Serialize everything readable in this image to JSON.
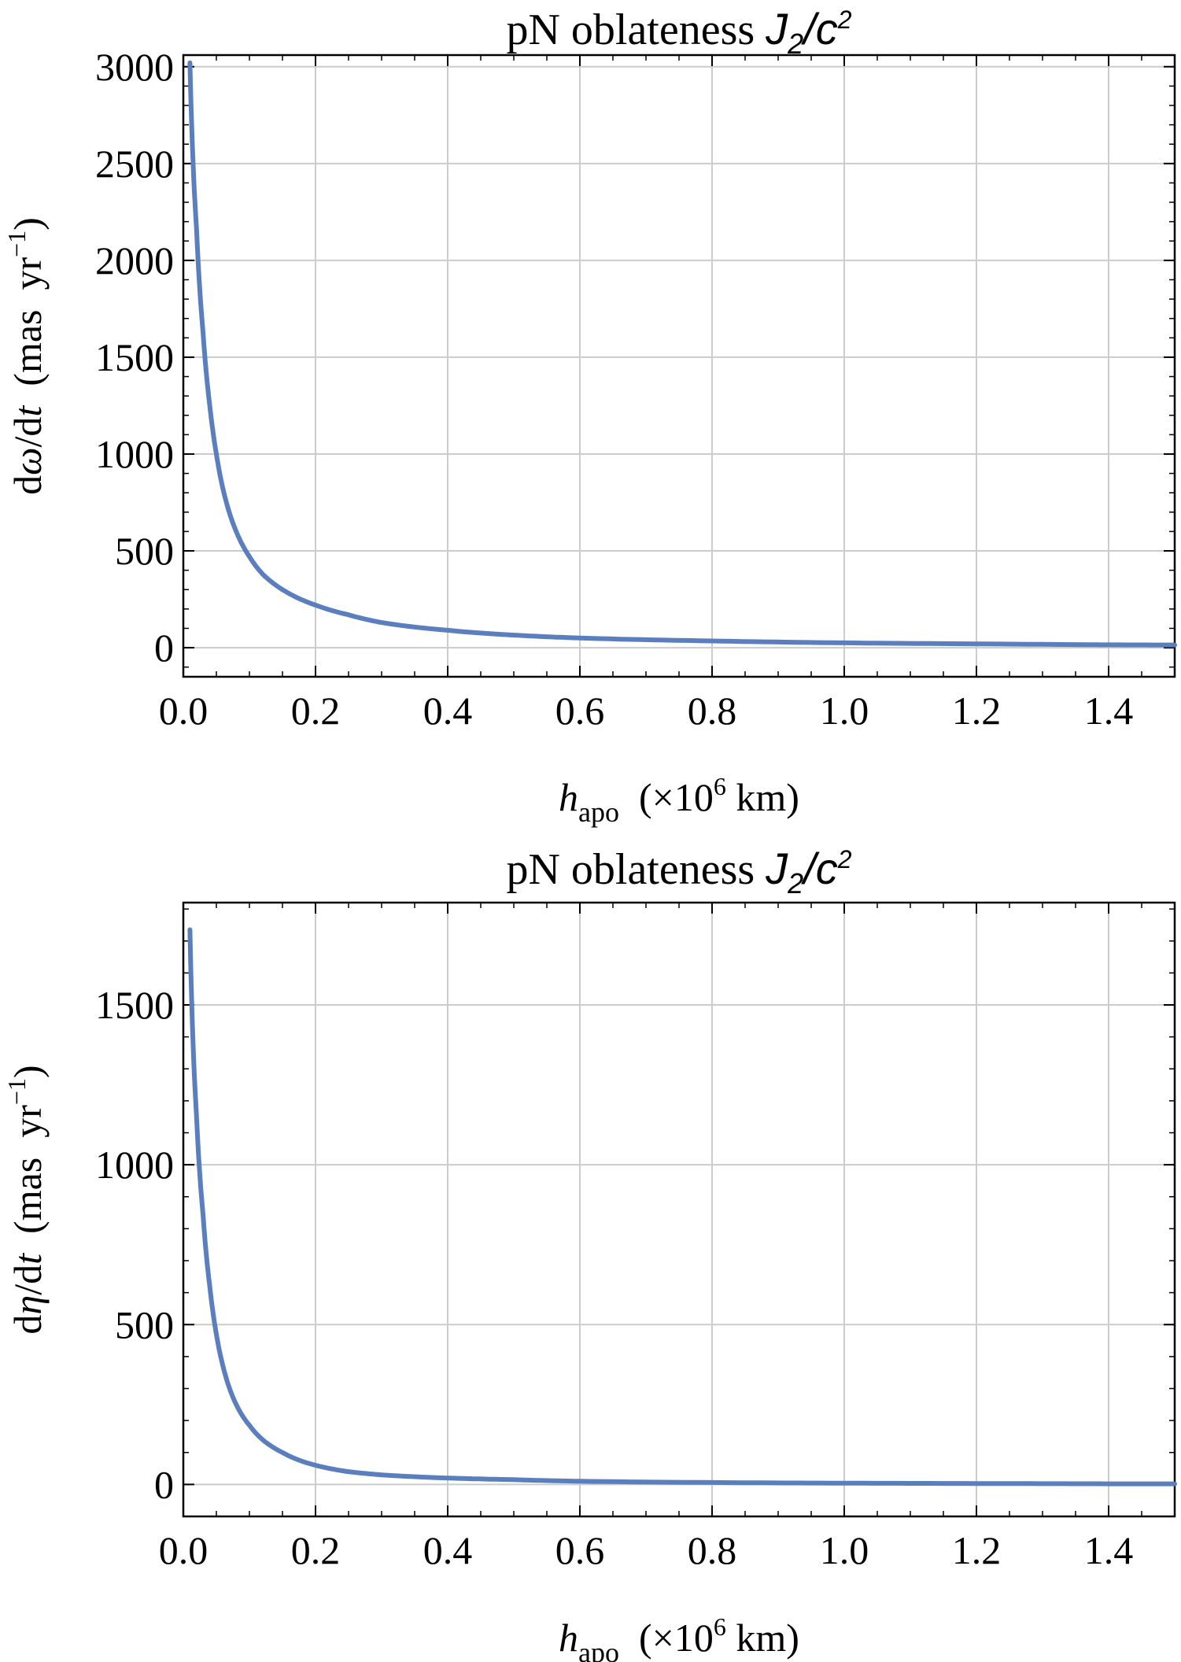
{
  "chart_data": [
    {
      "type": "line",
      "title": "pN oblateness",
      "title_math": "J₂/c²",
      "title_math_base": "J",
      "title_math_sub": "2",
      "title_math_mid": "/c",
      "title_math_sup": "2",
      "xlabel_symbol": "h",
      "xlabel_sub": "apo",
      "xlabel_unit_pre": "(×10",
      "xlabel_unit_exp": "6",
      "xlabel_unit_post": " km)",
      "ylabel_pre": "d",
      "ylabel_symbol": "ω",
      "ylabel_mid": "/d",
      "ylabel_var": "t",
      "ylabel_unit_pre": "  (mas  yr",
      "ylabel_unit_exp": "−1",
      "ylabel_unit_post": ")",
      "xlim": [
        0,
        1.5
      ],
      "ylim": [
        -150,
        3060
      ],
      "xticks": [
        "0.0",
        "0.2",
        "0.4",
        "0.6",
        "0.8",
        "1.0",
        "1.2",
        "1.4"
      ],
      "yticks": [
        "0",
        "500",
        "1000",
        "1500",
        "2000",
        "2500",
        "3000"
      ],
      "grid": true,
      "line_color": "#5b7fbe",
      "series": [
        {
          "x": [
            0.01,
            0.02,
            0.03,
            0.04,
            0.05,
            0.06,
            0.08,
            0.1,
            0.12,
            0.15,
            0.2,
            0.25,
            0.3,
            0.4,
            0.5,
            0.6,
            0.8,
            1.0,
            1.2,
            1.4,
            1.5
          ],
          "y": [
            3020,
            2160,
            1620,
            1250,
            1000,
            820,
            600,
            470,
            380,
            300,
            220,
            170,
            130,
            90,
            65,
            50,
            35,
            25,
            20,
            15,
            14
          ]
        }
      ]
    },
    {
      "type": "line",
      "title": "pN oblateness",
      "title_math": "J₂/c²",
      "title_math_base": "J",
      "title_math_sub": "2",
      "title_math_mid": "/c",
      "title_math_sup": "2",
      "xlabel_symbol": "h",
      "xlabel_sub": "apo",
      "xlabel_unit_pre": "(×10",
      "xlabel_unit_exp": "6",
      "xlabel_unit_post": " km)",
      "ylabel_pre": "d",
      "ylabel_symbol": "η",
      "ylabel_mid": "/d",
      "ylabel_var": "t",
      "ylabel_unit_pre": "  (mas  yr",
      "ylabel_unit_exp": "−1",
      "ylabel_unit_post": ")",
      "xlim": [
        0,
        1.5
      ],
      "ylim": [
        -100,
        1820
      ],
      "xticks": [
        "0.0",
        "0.2",
        "0.4",
        "0.6",
        "0.8",
        "1.0",
        "1.2",
        "1.4"
      ],
      "yticks": [
        "0",
        "500",
        "1000",
        "1500"
      ],
      "grid": true,
      "line_color": "#5b7fbe",
      "series": [
        {
          "x": [
            0.01,
            0.02,
            0.03,
            0.04,
            0.05,
            0.06,
            0.08,
            0.1,
            0.12,
            0.15,
            0.2,
            0.25,
            0.3,
            0.4,
            0.5,
            0.6,
            0.8,
            1.0,
            1.2,
            1.4,
            1.5
          ],
          "y": [
            1735,
            1150,
            840,
            620,
            470,
            370,
            250,
            185,
            140,
            100,
            60,
            40,
            30,
            20,
            15,
            10,
            6,
            4,
            3,
            2,
            2
          ]
        }
      ]
    }
  ]
}
